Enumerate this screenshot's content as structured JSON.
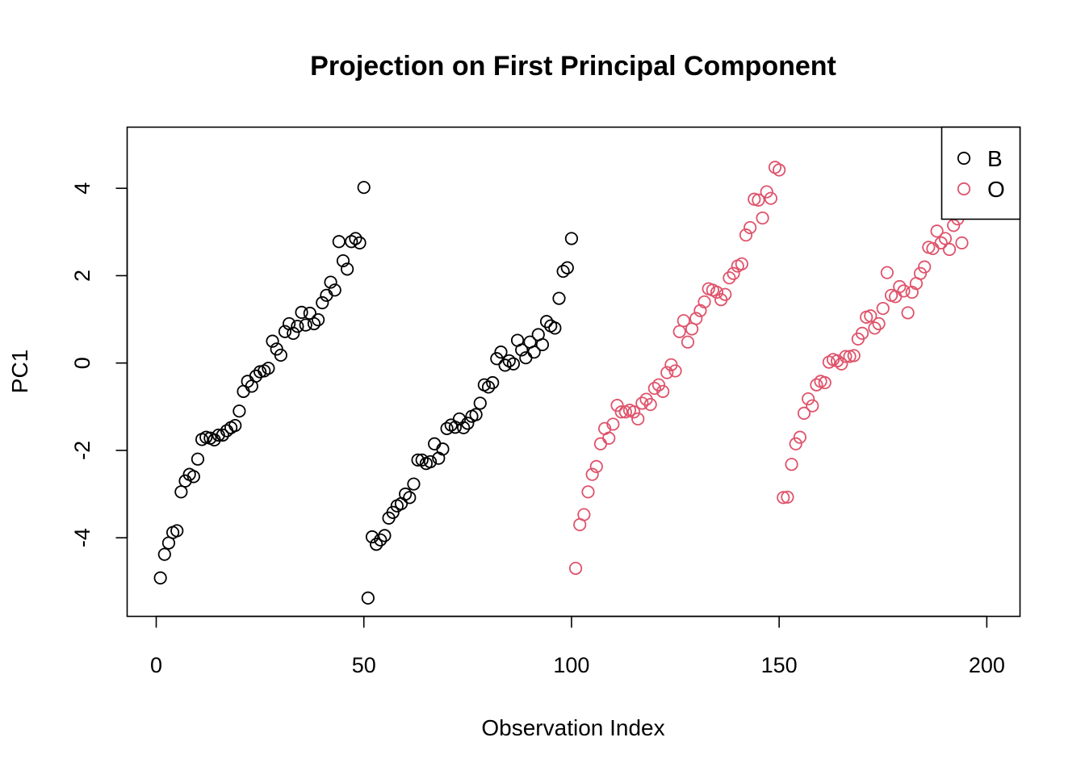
{
  "chart_data": {
    "type": "scatter",
    "title": "Projection on First Principal Component",
    "xlabel": "Observation Index",
    "ylabel": "PC1",
    "xlim": [
      -7,
      208
    ],
    "ylim": [
      -5.8,
      5.4
    ],
    "x_ticks": [
      0,
      50,
      100,
      150,
      200
    ],
    "x_tick_labels": [
      "0",
      "50",
      "100",
      "150",
      "200"
    ],
    "y_ticks": [
      -4,
      -2,
      0,
      2,
      4
    ],
    "y_tick_labels": [
      "-4",
      "-2",
      "0",
      "2",
      "4"
    ],
    "grid": false,
    "legend_position": "top-right",
    "series": [
      {
        "name": "B",
        "color": "#000000",
        "marker": "open-circle",
        "x": [
          1,
          2,
          3,
          4,
          5,
          6,
          7,
          8,
          9,
          10,
          11,
          12,
          13,
          14,
          15,
          16,
          17,
          18,
          19,
          20,
          21,
          22,
          23,
          24,
          25,
          26,
          27,
          28,
          29,
          30,
          31,
          32,
          33,
          34,
          35,
          36,
          37,
          38,
          39,
          40,
          41,
          42,
          43,
          44,
          45,
          46,
          47,
          48,
          49,
          50,
          51,
          52,
          53,
          54,
          55,
          56,
          57,
          58,
          59,
          60,
          61,
          62,
          63,
          64,
          65,
          66,
          67,
          68,
          69,
          70,
          71,
          72,
          73,
          74,
          75,
          76,
          77,
          78,
          79,
          80,
          81,
          82,
          83,
          84,
          85,
          86,
          87,
          88,
          89,
          90,
          91,
          92,
          93,
          94,
          95,
          96,
          97,
          98,
          99,
          100
        ],
        "y": [
          -4.92,
          -4.38,
          -4.12,
          -3.88,
          -3.84,
          -2.95,
          -2.7,
          -2.55,
          -2.6,
          -2.2,
          -1.75,
          -1.7,
          -1.72,
          -1.76,
          -1.65,
          -1.65,
          -1.55,
          -1.48,
          -1.43,
          -1.1,
          -0.65,
          -0.42,
          -0.53,
          -0.3,
          -0.2,
          -0.18,
          -0.12,
          0.5,
          0.32,
          0.18,
          0.72,
          0.9,
          0.68,
          0.84,
          1.16,
          0.87,
          1.14,
          0.9,
          0.99,
          1.38,
          1.55,
          1.85,
          1.67,
          2.78,
          2.34,
          2.15,
          2.78,
          2.85,
          2.75,
          4.02,
          -5.38,
          -3.98,
          -4.15,
          -4.05,
          -3.95,
          -3.55,
          -3.42,
          -3.27,
          -3.22,
          -3.0,
          -3.08,
          -2.77,
          -2.22,
          -2.22,
          -2.3,
          -2.26,
          -1.85,
          -2.18,
          -1.97,
          -1.5,
          -1.42,
          -1.47,
          -1.28,
          -1.48,
          -1.38,
          -1.22,
          -1.18,
          -0.92,
          -0.5,
          -0.55,
          -0.45,
          0.1,
          0.25,
          -0.05,
          0.05,
          -0.02,
          0.52,
          0.3,
          0.12,
          0.48,
          0.25,
          0.65,
          0.42,
          0.95,
          0.85,
          0.8,
          1.48,
          2.1,
          2.18,
          2.85
        ]
      },
      {
        "name": "O",
        "color": "#DF536B",
        "marker": "open-circle",
        "x": [
          101,
          102,
          103,
          104,
          105,
          106,
          107,
          108,
          109,
          110,
          111,
          112,
          113,
          114,
          115,
          116,
          117,
          118,
          119,
          120,
          121,
          122,
          123,
          124,
          125,
          126,
          127,
          128,
          129,
          130,
          131,
          132,
          133,
          134,
          135,
          136,
          137,
          138,
          139,
          140,
          141,
          142,
          143,
          144,
          145,
          146,
          147,
          148,
          149,
          150,
          151,
          152,
          153,
          154,
          155,
          156,
          157,
          158,
          159,
          160,
          161,
          162,
          163,
          164,
          165,
          166,
          167,
          168,
          169,
          170,
          171,
          172,
          173,
          174,
          175,
          176,
          177,
          178,
          179,
          180,
          181,
          182,
          183,
          184,
          185,
          186,
          187,
          188,
          189,
          190,
          191,
          192,
          193,
          194
        ],
        "y": [
          -4.7,
          -3.7,
          -3.47,
          -2.95,
          -2.55,
          -2.37,
          -1.85,
          -1.5,
          -1.72,
          -1.4,
          -0.97,
          -1.12,
          -1.12,
          -1.08,
          -1.12,
          -1.28,
          -0.92,
          -0.83,
          -0.95,
          -0.58,
          -0.5,
          -0.65,
          -0.22,
          -0.04,
          -0.18,
          0.72,
          0.97,
          0.48,
          0.78,
          1.02,
          1.2,
          1.4,
          1.7,
          1.67,
          1.62,
          1.45,
          1.57,
          1.95,
          2.05,
          2.22,
          2.27,
          2.93,
          3.1,
          3.75,
          3.73,
          3.32,
          3.92,
          3.77,
          4.48,
          4.42,
          -3.08,
          -3.07,
          -2.32,
          -1.85,
          -1.7,
          -1.15,
          -0.82,
          -0.98,
          -0.5,
          -0.42,
          -0.45,
          0.02,
          0.08,
          0.05,
          -0.02,
          0.15,
          0.15,
          0.17,
          0.55,
          0.68,
          1.05,
          1.08,
          0.8,
          0.9,
          1.25,
          2.07,
          1.55,
          1.52,
          1.75,
          1.65,
          1.15,
          1.62,
          1.82,
          2.05,
          2.2,
          2.65,
          2.62,
          3.02,
          2.75,
          2.85,
          2.6,
          3.15,
          3.3,
          2.75
        ]
      }
    ]
  }
}
